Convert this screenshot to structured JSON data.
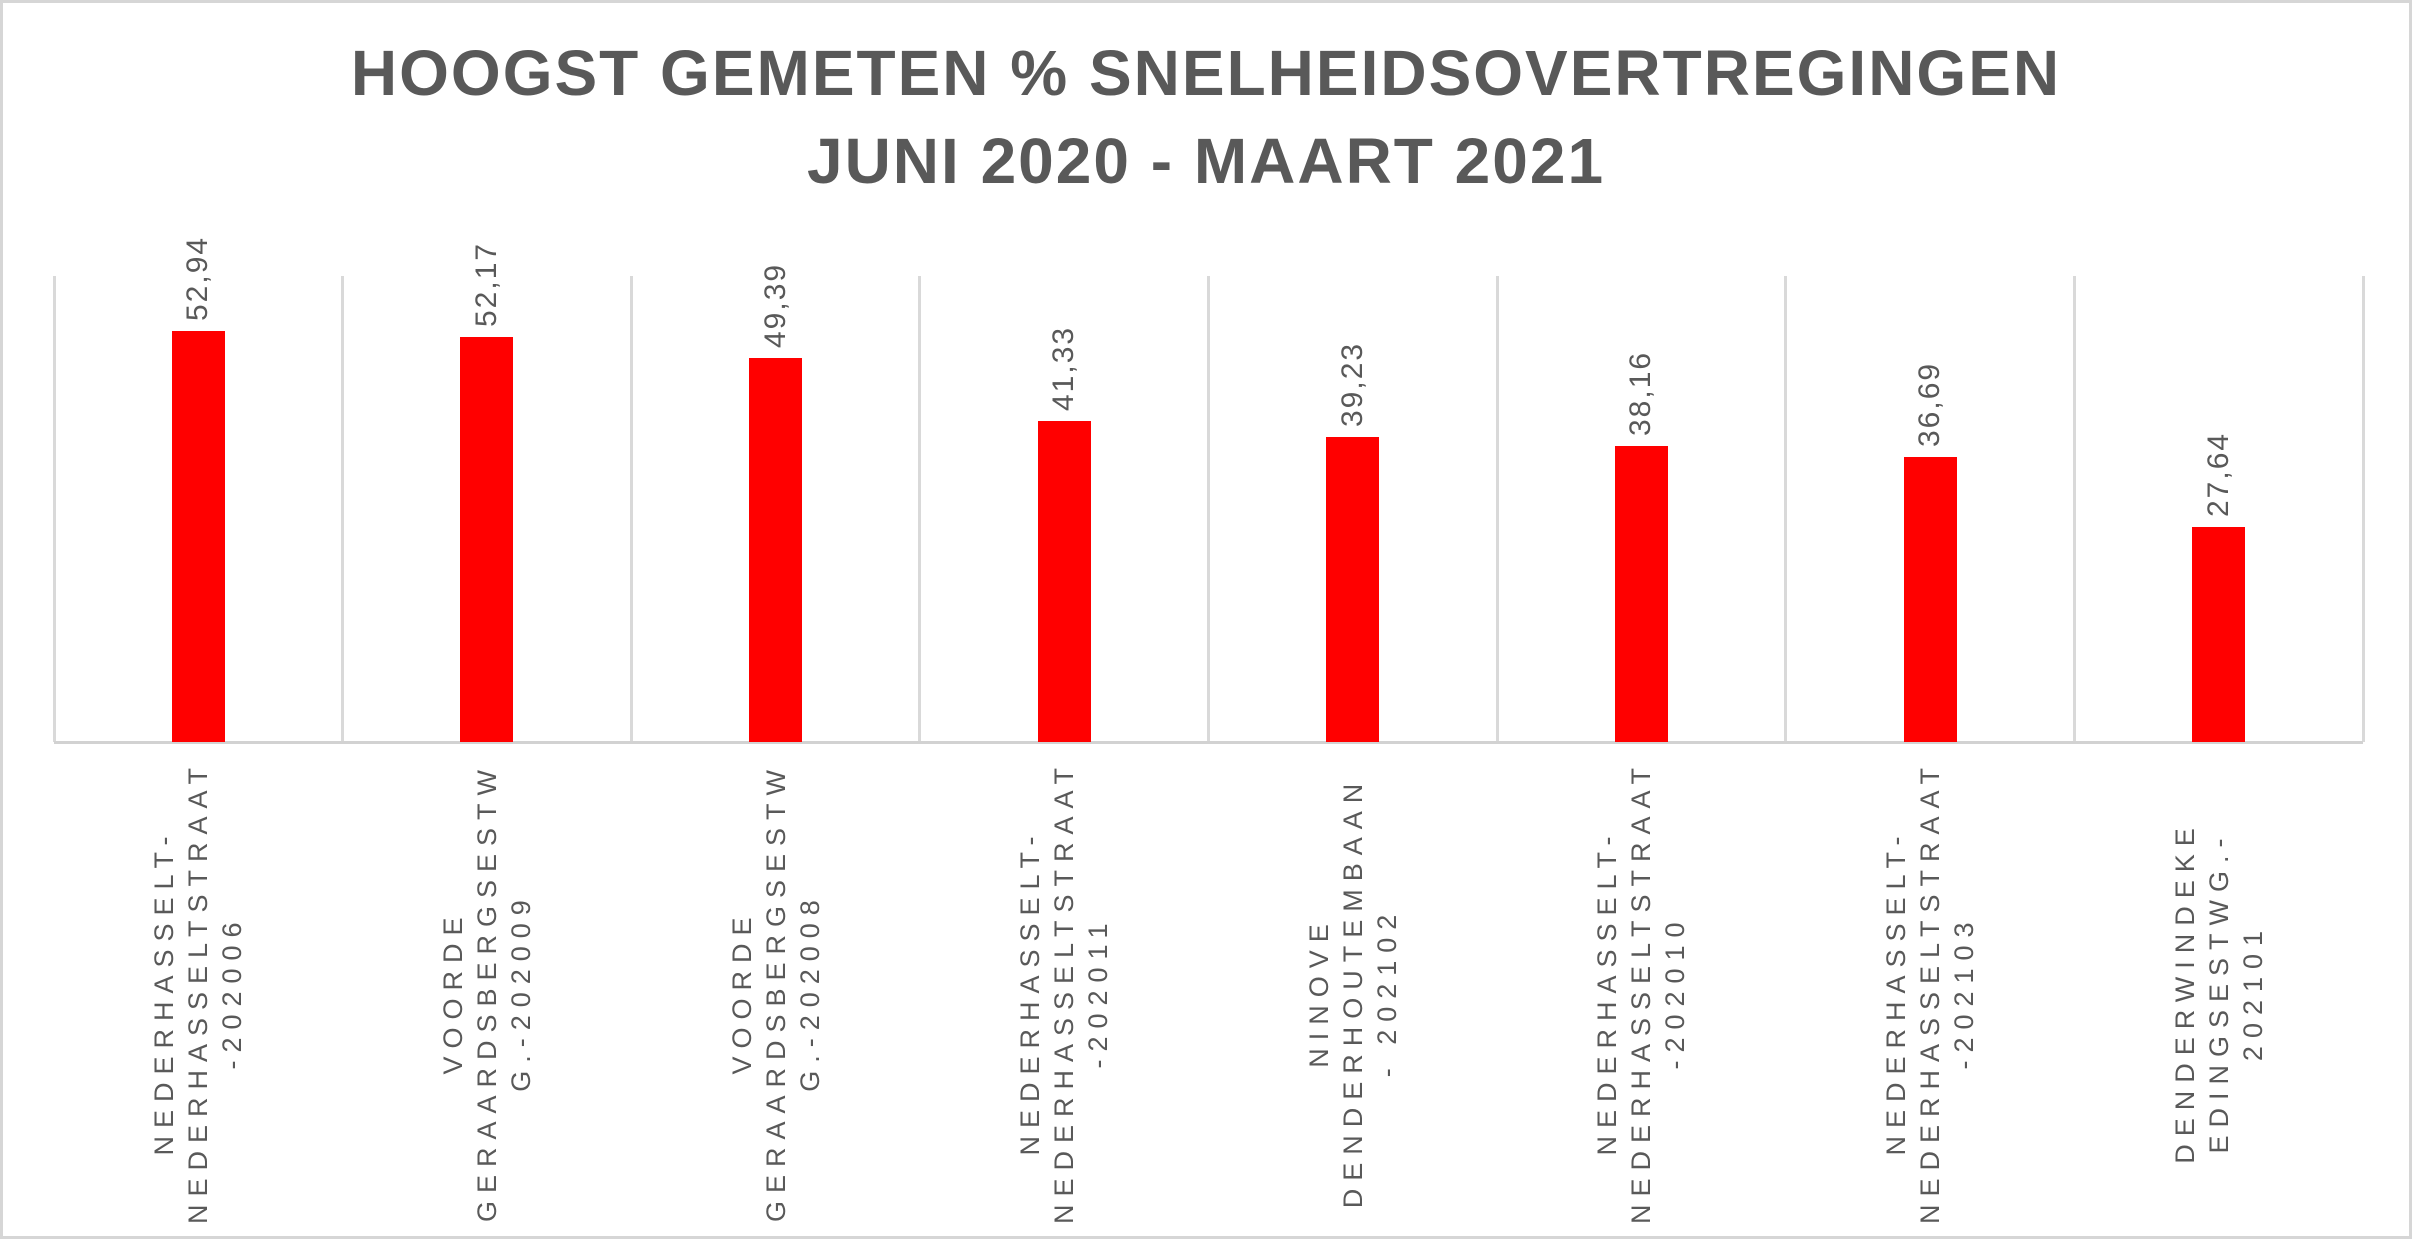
{
  "title": {
    "line1": "HOOGST GEMETEN % SNELHEIDSOVERTREGINGEN",
    "line2": "JUNI 2020 - MAART 2021"
  },
  "chart_data": {
    "type": "bar",
    "title": "HOOGST GEMETEN % SNELHEIDSOVERTREGINGEN JUNI 2020 - MAART 2021",
    "categories": [
      [
        "NEDERHASSELT-",
        "NEDERHASSELTSTRAAT",
        "-202006"
      ],
      [
        "VOORDE",
        "GERAARDSBERGSESTW",
        "G.-202009"
      ],
      [
        "VOORDE",
        "GERAARDSBERGSESTW",
        "G.-202008"
      ],
      [
        "NEDERHASSELT-",
        "NEDERHASSELTSTRAAT",
        "-202011"
      ],
      [
        "NINOVE",
        "DENDERHOUTEMBAAN",
        "- 202102"
      ],
      [
        "NEDERHASSELT-",
        "NEDERHASSELTSTRAAT",
        "-202010"
      ],
      [
        "NEDERHASSELT-",
        "NEDERHASSELTSTRAAT",
        "-202103"
      ],
      [
        "DENDERWINDEKE",
        "EDINGSESTWG.-",
        "202101"
      ]
    ],
    "values": [
      52.94,
      52.17,
      49.39,
      41.33,
      39.23,
      38.16,
      36.69,
      27.64
    ],
    "value_labels": [
      "52,94",
      "52,17",
      "49,39",
      "41,33",
      "39,23",
      "38,16",
      "36,69",
      "27,64"
    ],
    "ylabel": "",
    "xlabel": "",
    "ylim": [
      0,
      60
    ],
    "grid": "vertical-category-boundaries",
    "legend": "none",
    "bar_color": "#ff0000",
    "text_color": "#595959",
    "gridline_color": "#d9d9d9"
  }
}
